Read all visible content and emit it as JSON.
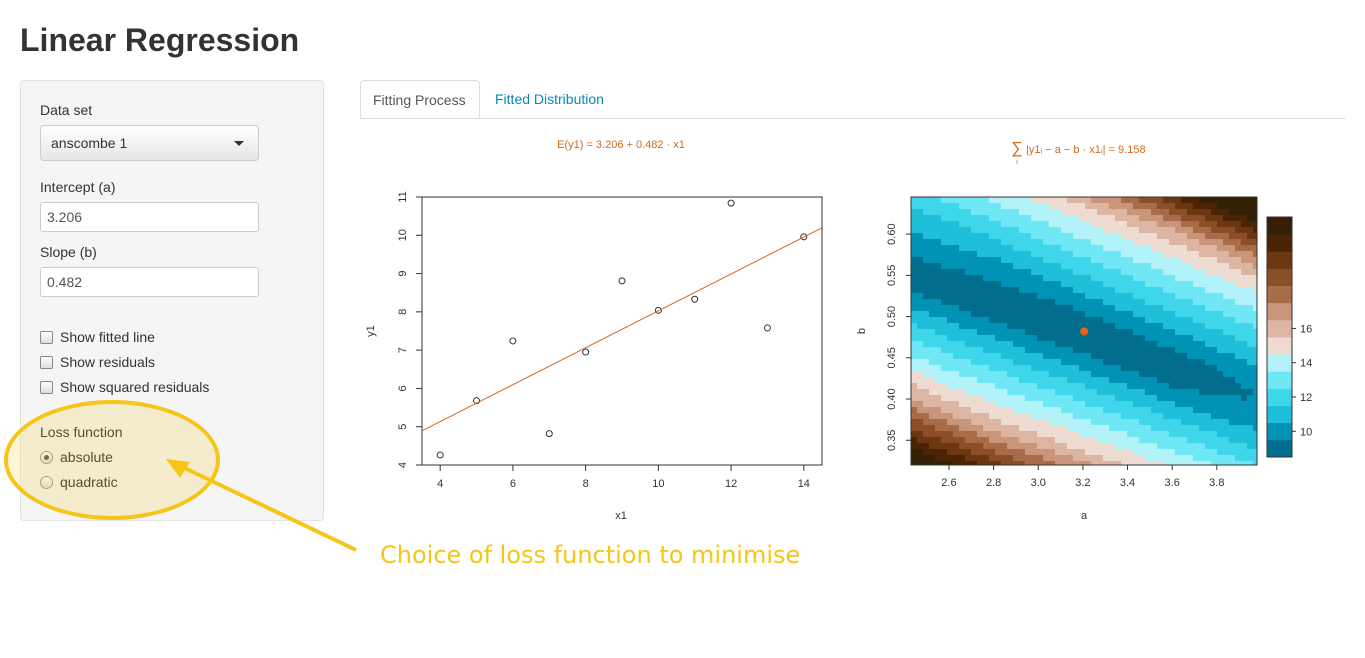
{
  "app": {
    "title": "Linear Regression"
  },
  "sidebar": {
    "dataset_label": "Data set",
    "dataset_value": "anscombe 1",
    "intercept_label": "Intercept (a)",
    "intercept_value": "3.206",
    "slope_label": "Slope (b)",
    "slope_value": "0.482",
    "checkboxes": [
      {
        "label": "Show fitted line",
        "checked": false
      },
      {
        "label": "Show residuals",
        "checked": false
      },
      {
        "label": "Show squared residuals",
        "checked": false
      }
    ],
    "loss_label": "Loss function",
    "loss_options": [
      {
        "label": "absolute",
        "selected": true
      },
      {
        "label": "quadratic",
        "selected": false
      }
    ]
  },
  "tabs": [
    {
      "label": "Fitting Process",
      "active": true
    },
    {
      "label": "Fitted Distribution",
      "active": false
    }
  ],
  "annotation": {
    "text": "Choice of loss function to minimise",
    "color": "#f5c518"
  },
  "chart_data": [
    {
      "type": "scatter",
      "title": "E(y1) = 3.206 + 0.482 · x1",
      "xlabel": "x1",
      "ylabel": "y1",
      "xlim": [
        3.5,
        14.5
      ],
      "ylim": [
        4,
        11
      ],
      "xticks": [
        4,
        6,
        8,
        10,
        12,
        14
      ],
      "yticks": [
        4,
        5,
        6,
        7,
        8,
        9,
        10,
        11
      ],
      "x": [
        10,
        8,
        13,
        9,
        11,
        14,
        6,
        4,
        12,
        7,
        5
      ],
      "y": [
        8.04,
        6.95,
        7.58,
        8.81,
        8.33,
        9.96,
        7.24,
        4.26,
        10.84,
        4.82,
        5.68
      ],
      "line": {
        "intercept": 3.206,
        "slope": 0.482,
        "color": "#d2691e"
      }
    },
    {
      "type": "heatmap",
      "title": "∑|y1ᵢ − a − b · x1ᵢ| = 9.158",
      "title_parts": {
        "sum": "∑",
        "index": "i",
        "body": "|y1ᵢ − a − b · x1ᵢ| = 9.158"
      },
      "xlabel": "a",
      "ylabel": "b",
      "xlim": [
        2.43,
        3.98
      ],
      "ylim": [
        0.32,
        0.645
      ],
      "xticks": [
        2.6,
        2.8,
        3.0,
        3.2,
        3.4,
        3.6,
        3.8
      ],
      "xtick_labels": [
        "2.6",
        "2.8",
        "3.0",
        "3.2",
        "3.4",
        "3.6",
        "3.8"
      ],
      "yticks": [
        0.35,
        0.4,
        0.45,
        0.5,
        0.55,
        0.6
      ],
      "ytick_labels": [
        "0.35",
        "0.40",
        "0.45",
        "0.50",
        "0.55",
        "0.60"
      ],
      "point": {
        "a": 3.206,
        "b": 0.482,
        "color": "#e8601c"
      },
      "legend_ticks": [
        10,
        12,
        14,
        16
      ],
      "colors": [
        "#006e8c",
        "#0093b5",
        "#1fbfd9",
        "#3fd6ec",
        "#6fe7f5",
        "#b2f3fa",
        "#eedbd2",
        "#dcb6a3",
        "#c8957a",
        "#a86c48",
        "#8a4f28",
        "#6b3610",
        "#4d2305",
        "#332005"
      ]
    }
  ]
}
